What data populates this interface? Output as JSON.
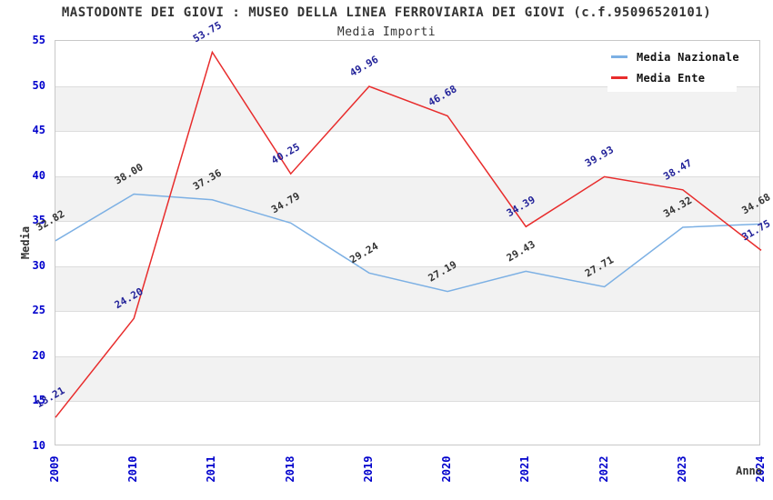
{
  "header": {
    "title": "MASTODONTE DEI GIOVI : MUSEO DELLA LINEA FERROVIARIA DEI GIOVI (c.f.95096520101)",
    "subtitle": "Media Importi"
  },
  "chart_data": {
    "type": "line",
    "title": "MASTODONTE DEI GIOVI : MUSEO DELLA LINEA FERROVIARIA DEI GIOVI (c.f.95096520101)",
    "subtitle": "Media Importi",
    "xlabel": "Anno",
    "ylabel": "Media",
    "categories": [
      "2009",
      "2010",
      "2011",
      "2018",
      "2019",
      "2020",
      "2021",
      "2022",
      "2023",
      "2024"
    ],
    "series": [
      {
        "name": "Media Nazionale",
        "color": "#7cb0e4",
        "label_color": "#333333",
        "values": [
          32.82,
          38.0,
          37.36,
          34.79,
          29.24,
          27.19,
          29.43,
          27.71,
          34.32,
          34.68
        ]
      },
      {
        "name": "Media Ente",
        "color": "#e82c2c",
        "label_color": "#222299",
        "values": [
          13.21,
          24.2,
          53.75,
          40.25,
          49.96,
          46.68,
          34.39,
          39.93,
          38.47,
          31.75
        ]
      }
    ],
    "ylim": [
      10,
      55
    ],
    "ytick_step": 5,
    "grid": true,
    "legend_position": "top-right",
    "band_color": "#f2f2f2",
    "tick_label_color": "#0000cc"
  }
}
